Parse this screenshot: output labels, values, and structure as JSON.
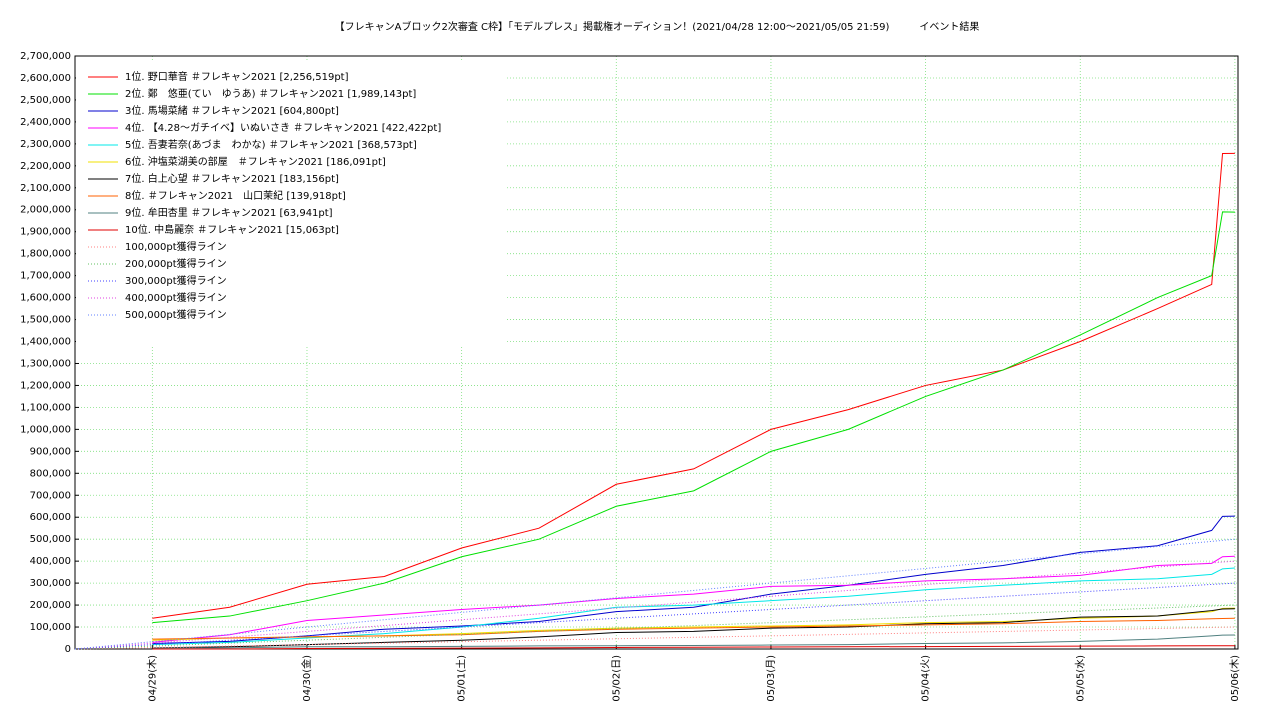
{
  "chart_data": {
    "type": "line",
    "title": "【フレキャンAブロック2次審査 C枠】「モデルプレス」掲載権オーディション！(2021/04/28 12:00〜2021/05/05 21:59)　　　イベント結果",
    "x": [
      0,
      0.5,
      1,
      1.5,
      2,
      2.5,
      3,
      3.5,
      4,
      4.5,
      5,
      5.5,
      6,
      6.5,
      6.85,
      6.92,
      7
    ],
    "xlim": [
      -0.5,
      7.02
    ],
    "xticks": [
      {
        "value": 0,
        "label": "04/29(木)"
      },
      {
        "value": 1,
        "label": "04/30(金)"
      },
      {
        "value": 2,
        "label": "05/01(土)"
      },
      {
        "value": 3,
        "label": "05/02(日)"
      },
      {
        "value": 4,
        "label": "05/03(月)"
      },
      {
        "value": 5,
        "label": "05/04(火)"
      },
      {
        "value": 6,
        "label": "05/05(水)"
      },
      {
        "value": 7,
        "label": "05/06(木)"
      }
    ],
    "ylim": [
      0,
      2700000
    ],
    "yticks": [
      0,
      {
        "value": 100000,
        "label": "100,000"
      },
      {
        "value": 200000,
        "label": "200,000"
      },
      {
        "value": 300000,
        "label": "300,000"
      },
      {
        "value": 400000,
        "label": "400,000"
      },
      {
        "value": 500000,
        "label": "500,000"
      },
      {
        "value": 600000,
        "label": "600,000"
      },
      {
        "value": 700000,
        "label": "700,000"
      },
      {
        "value": 800000,
        "label": "800,000"
      },
      {
        "value": 900000,
        "label": "900,000"
      },
      {
        "value": 1000000,
        "label": "1,000,000"
      },
      {
        "value": 1100000,
        "label": "1,100,000"
      },
      {
        "value": 1200000,
        "label": "1,200,000"
      },
      {
        "value": 1300000,
        "label": "1,300,000"
      },
      {
        "value": 1400000,
        "label": "1,400,000"
      },
      {
        "value": 1500000,
        "label": "1,500,000"
      },
      {
        "value": 1600000,
        "label": "1,600,000"
      },
      {
        "value": 1700000,
        "label": "1,700,000"
      },
      {
        "value": 1800000,
        "label": "1,800,000"
      },
      {
        "value": 1900000,
        "label": "1,900,000"
      },
      {
        "value": 2000000,
        "label": "2,000,000"
      },
      {
        "value": 2100000,
        "label": "2,100,000"
      },
      {
        "value": 2200000,
        "label": "2,200,000"
      },
      {
        "value": 2300000,
        "label": "2,300,000"
      },
      {
        "value": 2400000,
        "label": "2,400,000"
      },
      {
        "value": 2500000,
        "label": "2,500,000"
      },
      {
        "value": 2600000,
        "label": "2,600,000"
      },
      {
        "value": 2700000,
        "label": "2,700,000"
      }
    ],
    "grid": true,
    "legend": "upper left",
    "series": [
      {
        "name": "1位. 野口華音 ＃フレキャン2021 [2,256,519pt]",
        "color": "#ff0000",
        "values": [
          140000,
          190000,
          295000,
          330000,
          460000,
          550000,
          750000,
          820000,
          1000000,
          1090000,
          1200000,
          1270000,
          1400000,
          1550000,
          1660000,
          2256000,
          2256519
        ]
      },
      {
        "name": "2位. 鄭　悠亜(てい　ゆうあ) ＃フレキャン2021 [1,989,143pt]",
        "color": "#00e000",
        "values": [
          120000,
          150000,
          220000,
          300000,
          420000,
          500000,
          650000,
          720000,
          900000,
          1000000,
          1150000,
          1270000,
          1430000,
          1600000,
          1700000,
          1990000,
          1989143
        ]
      },
      {
        "name": "3位. 馬場菜緒 ＃フレキャン2021 [604,800pt]",
        "color": "#0000cc",
        "values": [
          25000,
          35000,
          60000,
          90000,
          105000,
          125000,
          170000,
          190000,
          250000,
          290000,
          340000,
          380000,
          440000,
          470000,
          540000,
          604000,
          604800
        ]
      },
      {
        "name": "4位. 【4.28〜ガチイベ】いぬいさき ＃フレキャン2021 [422,422pt]",
        "color": "#ff00ff",
        "values": [
          30000,
          65000,
          130000,
          155000,
          180000,
          200000,
          230000,
          250000,
          285000,
          290000,
          310000,
          320000,
          335000,
          380000,
          390000,
          420000,
          422422
        ]
      },
      {
        "name": "5位. 吾妻若奈(あづま　わかな) ＃フレキャン2021 [368,573pt]",
        "color": "#00e8e8",
        "values": [
          20000,
          30000,
          50000,
          70000,
          100000,
          140000,
          190000,
          200000,
          220000,
          240000,
          270000,
          290000,
          310000,
          320000,
          340000,
          365000,
          368573
        ]
      },
      {
        "name": "6位. 沖塩菜湖美の部屋　＃フレキャン2021 [186,091pt]",
        "color": "#f0e000",
        "values": [
          40000,
          50000,
          55000,
          60000,
          70000,
          85000,
          95000,
          100000,
          105000,
          110000,
          120000,
          125000,
          140000,
          150000,
          170000,
          185000,
          186091
        ]
      },
      {
        "name": "7位. 白上心望 ＃フレキャン2021 [183,156pt]",
        "color": "#000000",
        "values": [
          5000,
          10000,
          20000,
          30000,
          40000,
          55000,
          75000,
          80000,
          95000,
          100000,
          115000,
          120000,
          145000,
          150000,
          175000,
          182000,
          183156
        ]
      },
      {
        "name": "8位. ＃フレキャン2021　山口茉紀 [139,918pt]",
        "color": "#ff6000",
        "values": [
          45000,
          50000,
          55000,
          60000,
          65000,
          80000,
          90000,
          95000,
          100000,
          105000,
          110000,
          115000,
          125000,
          130000,
          138000,
          139000,
          139918
        ]
      },
      {
        "name": "9位. 牟田杏里 ＃フレキャン2021 [63,941pt]",
        "color": "#508080",
        "values": [
          5000,
          5000,
          10000,
          10000,
          12000,
          14000,
          15000,
          16000,
          18000,
          20000,
          25000,
          28000,
          35000,
          45000,
          60000,
          63000,
          63941
        ]
      },
      {
        "name": "10位. 中島麗奈 ＃フレキャン2021 [15,063pt]",
        "color": "#e00000",
        "values": [
          0,
          0,
          2000,
          3000,
          4000,
          5000,
          7000,
          8000,
          9000,
          10000,
          11000,
          12000,
          13000,
          14000,
          15000,
          15000,
          15063
        ]
      },
      {
        "name": "100,000pt獲得ライン",
        "color": "#ff8080",
        "dotted": true,
        "x": [
          -0.5,
          7
        ],
        "values": [
          0,
          100000
        ]
      },
      {
        "name": "200,000pt獲得ライン",
        "color": "#60c060",
        "dotted": true,
        "x": [
          -0.5,
          7
        ],
        "values": [
          0,
          200000
        ]
      },
      {
        "name": "300,000pt獲得ライン",
        "color": "#4040ff",
        "dotted": true,
        "x": [
          -0.5,
          7
        ],
        "values": [
          0,
          300000
        ]
      },
      {
        "name": "400,000pt獲得ライン",
        "color": "#e040e0",
        "dotted": true,
        "x": [
          -0.5,
          7
        ],
        "values": [
          0,
          400000
        ]
      },
      {
        "name": "500,000pt獲得ライン",
        "color": "#6080ff",
        "dotted": true,
        "x": [
          -0.5,
          7
        ],
        "values": [
          0,
          500000
        ]
      }
    ]
  }
}
